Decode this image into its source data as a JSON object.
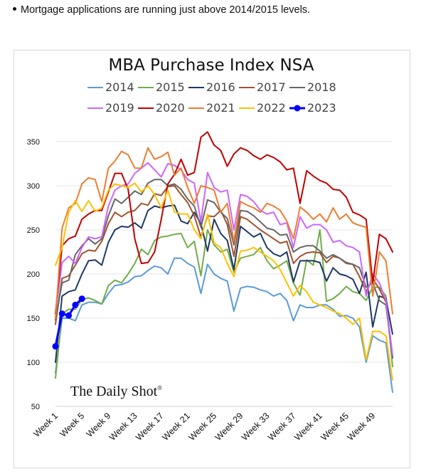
{
  "note": {
    "bullet_text": "Mortgage applications are running just above 2014/2015 levels."
  },
  "watermark": {
    "brand": "The Daily Shot",
    "reg": "®"
  },
  "chart_data": {
    "type": "line",
    "title": "MBA Purchase Index NSA",
    "xlabel": "",
    "ylabel": "",
    "ylim": [
      50,
      350
    ],
    "yticks": [
      50,
      100,
      150,
      200,
      250,
      300,
      350
    ],
    "xtick_labels": [
      "Week 1",
      "Week 5",
      "Week 9",
      "Week 13",
      "Week 17",
      "Week 21",
      "Week 25",
      "Week 29",
      "Week 33",
      "Week 37",
      "Week 41",
      "Week 45",
      "Week 49"
    ],
    "xtick_weeks": [
      1,
      5,
      9,
      13,
      17,
      21,
      25,
      29,
      33,
      37,
      41,
      45,
      49
    ],
    "x_range": [
      1,
      52
    ],
    "grid": "horizontal",
    "legend_position": "top",
    "series": [
      {
        "name": "2014",
        "color": "#5b9bd5",
        "marker": false,
        "values": [
          88,
          150,
          150,
          147,
          165,
          168,
          168,
          166,
          178,
          187,
          188,
          191,
          197,
          198,
          204,
          209,
          207,
          200,
          218,
          218,
          212,
          208,
          178,
          211,
          200,
          195,
          192,
          158,
          184,
          186,
          185,
          182,
          180,
          175,
          178,
          170,
          147,
          165,
          162,
          162,
          165,
          165,
          160,
          152,
          153,
          150,
          140,
          100,
          130,
          125,
          122,
          66
        ]
      },
      {
        "name": "2015",
        "color": "#70ad47",
        "marker": false,
        "values": [
          82,
          155,
          160,
          160,
          171,
          173,
          170,
          166,
          187,
          193,
          190,
          200,
          212,
          228,
          222,
          238,
          242,
          243,
          245,
          246,
          230,
          237,
          198,
          250,
          233,
          225,
          228,
          202,
          218,
          220,
          222,
          230,
          215,
          206,
          210,
          215,
          190,
          176,
          216,
          210,
          250,
          169,
          172,
          178,
          186,
          180,
          178,
          170,
          185,
          185,
          175,
          95
        ]
      },
      {
        "name": "2016",
        "color": "#1f3864",
        "marker": false,
        "values": [
          100,
          175,
          180,
          182,
          200,
          215,
          216,
          210,
          236,
          250,
          254,
          253,
          258,
          252,
          272,
          277,
          275,
          277,
          278,
          260,
          257,
          270,
          257,
          226,
          262,
          246,
          238,
          205,
          254,
          248,
          242,
          246,
          230,
          223,
          220,
          225,
          191,
          215,
          215,
          215,
          213,
          192,
          207,
          200,
          198,
          194,
          178,
          202,
          140,
          175,
          172,
          132
        ]
      },
      {
        "name": "2017",
        "color": "#a0522d",
        "marker": false,
        "values": [
          143,
          195,
          198,
          210,
          223,
          227,
          226,
          237,
          257,
          270,
          265,
          270,
          272,
          280,
          278,
          291,
          289,
          299,
          300,
          290,
          281,
          266,
          242,
          266,
          265,
          272,
          256,
          220,
          265,
          262,
          256,
          250,
          245,
          240,
          235,
          237,
          212,
          220,
          224,
          225,
          224,
          213,
          220,
          218,
          212,
          211,
          197,
          180,
          195,
          183,
          168,
          105
        ]
      },
      {
        "name": "2018",
        "color": "#666666",
        "marker": false,
        "values": [
          148,
          190,
          193,
          222,
          232,
          240,
          234,
          240,
          266,
          285,
          280,
          287,
          294,
          290,
          303,
          307,
          307,
          300,
          302,
          296,
          285,
          277,
          253,
          284,
          281,
          270,
          263,
          233,
          272,
          271,
          266,
          259,
          252,
          250,
          244,
          245,
          225,
          230,
          232,
          232,
          226,
          218,
          222,
          218,
          213,
          211,
          207,
          185,
          190,
          170,
          165,
          105
        ]
      },
      {
        "name": "2019",
        "color": "#cc66ff",
        "marker": false,
        "values": [
          155,
          213,
          220,
          212,
          230,
          242,
          240,
          242,
          277,
          295,
          300,
          302,
          314,
          320,
          326,
          318,
          310,
          325,
          323,
          318,
          307,
          303,
          259,
          315,
          298,
          293,
          295,
          250,
          290,
          288,
          282,
          272,
          268,
          270,
          256,
          258,
          230,
          265,
          252,
          256,
          256,
          250,
          236,
          238,
          232,
          230,
          225,
          175,
          200,
          190,
          170,
          108
        ]
      },
      {
        "name": "2020",
        "color": "#c00000",
        "marker": false,
        "values": [
          155,
          232,
          240,
          243,
          262,
          268,
          272,
          272,
          293,
          314,
          314,
          296,
          240,
          212,
          213,
          225,
          262,
          302,
          313,
          330,
          312,
          315,
          355,
          361,
          346,
          340,
          322,
          336,
          343,
          340,
          334,
          330,
          335,
          332,
          327,
          318,
          320,
          280,
          317,
          311,
          306,
          303,
          296,
          295,
          287,
          270,
          267,
          262,
          190,
          245,
          240,
          225
        ]
      },
      {
        "name": "2021",
        "color": "#ed7d31",
        "marker": false,
        "values": [
          150,
          252,
          275,
          280,
          302,
          309,
          307,
          282,
          320,
          328,
          339,
          335,
          320,
          320,
          343,
          330,
          333,
          338,
          312,
          320,
          298,
          280,
          300,
          298,
          295,
          270,
          280,
          237,
          282,
          278,
          275,
          270,
          280,
          277,
          272,
          260,
          240,
          276,
          270,
          262,
          268,
          259,
          275,
          262,
          268,
          258,
          255,
          253,
          175,
          225,
          215,
          155
        ]
      },
      {
        "name": "2022",
        "color": "#ffc000",
        "marker": false,
        "values": [
          210,
          230,
          270,
          283,
          271,
          283,
          271,
          275,
          295,
          302,
          300,
          298,
          303,
          293,
          300,
          290,
          275,
          295,
          270,
          268,
          268,
          250,
          240,
          268,
          235,
          230,
          212,
          197,
          226,
          227,
          230,
          225,
          220,
          215,
          205,
          190,
          175,
          187,
          180,
          168,
          165,
          162,
          158,
          155,
          150,
          143,
          150,
          103,
          135,
          135,
          130,
          80
        ]
      },
      {
        "name": "2023",
        "color": "#0000ff",
        "marker": true,
        "values": [
          118,
          155,
          153,
          165,
          172
        ]
      }
    ]
  }
}
